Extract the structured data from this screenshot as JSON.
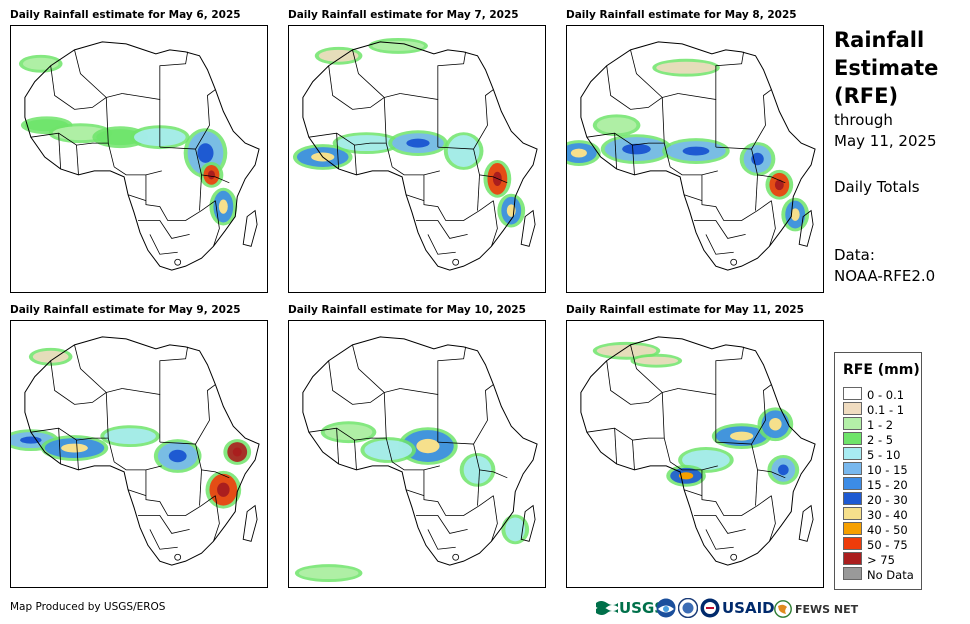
{
  "panels": [
    {
      "title": "Daily Rainfall estimate for May 6, 2025"
    },
    {
      "title": "Daily Rainfall estimate for May 7, 2025"
    },
    {
      "title": "Daily Rainfall estimate for May 8, 2025"
    },
    {
      "title": "Daily Rainfall estimate for May 9, 2025"
    },
    {
      "title": "Daily Rainfall estimate for May 10, 2025"
    },
    {
      "title": "Daily Rainfall estimate for May 11, 2025"
    }
  ],
  "sidebar": {
    "title_line1": "Rainfall",
    "title_line2": "Estimate",
    "title_line3": "(RFE)",
    "through": "through",
    "end_date": "May 11, 2025",
    "period": "Daily Totals",
    "data_label": "Data:",
    "data_source": "NOAA-RFE2.0"
  },
  "legend": {
    "title": "RFE (mm)",
    "items": [
      {
        "label": "0 - 0.1",
        "color": "#ffffff"
      },
      {
        "label": "0.1 - 1",
        "color": "#f0dcc0"
      },
      {
        "label": "1 - 2",
        "color": "#b4f0a8"
      },
      {
        "label": "2 - 5",
        "color": "#6ee46a"
      },
      {
        "label": "5 - 10",
        "color": "#a8ecf2"
      },
      {
        "label": "10 - 15",
        "color": "#78b8ee"
      },
      {
        "label": "15 - 20",
        "color": "#3c8ce6"
      },
      {
        "label": "20 - 30",
        "color": "#1e5ad2"
      },
      {
        "label": "30 - 40",
        "color": "#f6e08c"
      },
      {
        "label": "40 - 50",
        "color": "#f6a000"
      },
      {
        "label": "50 - 75",
        "color": "#ee3c0a"
      },
      {
        "label": "> 75",
        "color": "#aa1e1e"
      },
      {
        "label": "No Data",
        "color": "#999999"
      }
    ]
  },
  "footer": {
    "credit": "Map Produced by USGS/EROS"
  },
  "logos": {
    "usgs": "USGS",
    "usaid": "USAID",
    "fewsnet": "FEWS NET"
  }
}
